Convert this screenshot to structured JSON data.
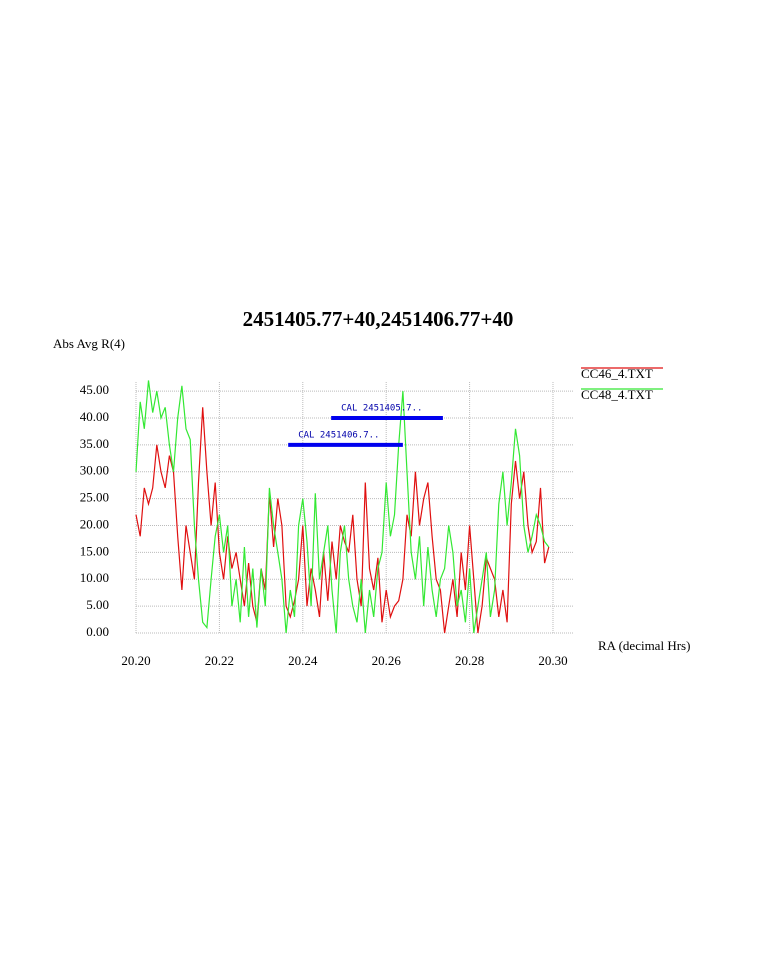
{
  "chart_data": {
    "type": "line",
    "title": "2451405.77+40,2451406.77+40",
    "ylabel": "Abs Avg R(4)",
    "xlabel": "RA (decimal Hrs)",
    "x": [
      20.2,
      20.201,
      20.202,
      20.203,
      20.204,
      20.205,
      20.206,
      20.207,
      20.208,
      20.209,
      20.21,
      20.211,
      20.212,
      20.213,
      20.214,
      20.215,
      20.216,
      20.217,
      20.218,
      20.219,
      20.22,
      20.221,
      20.222,
      20.223,
      20.224,
      20.225,
      20.226,
      20.227,
      20.228,
      20.229,
      20.23,
      20.231,
      20.232,
      20.233,
      20.234,
      20.235,
      20.236,
      20.237,
      20.238,
      20.239,
      20.24,
      20.241,
      20.242,
      20.243,
      20.244,
      20.245,
      20.246,
      20.247,
      20.248,
      20.249,
      20.25,
      20.251,
      20.252,
      20.253,
      20.254,
      20.255,
      20.256,
      20.257,
      20.258,
      20.259,
      20.26,
      20.261,
      20.262,
      20.263,
      20.264,
      20.265,
      20.266,
      20.267,
      20.268,
      20.269,
      20.27,
      20.271,
      20.272,
      20.273,
      20.274,
      20.275,
      20.276,
      20.277,
      20.278,
      20.279,
      20.28,
      20.281,
      20.282,
      20.283,
      20.284,
      20.285,
      20.286,
      20.287,
      20.288,
      20.289,
      20.29,
      20.291,
      20.292,
      20.293,
      20.294,
      20.295,
      20.296,
      20.297,
      20.298,
      20.299
    ],
    "series": [
      {
        "name": "CC46_4.TXT",
        "color": "#e01010",
        "values": [
          22,
          18,
          27,
          24,
          27,
          35,
          30,
          27,
          33,
          30,
          18,
          8,
          20,
          15,
          10,
          28,
          42,
          30,
          20,
          28,
          15,
          10,
          18,
          12,
          15,
          10,
          5,
          13,
          5,
          2,
          12,
          8,
          26,
          16,
          25,
          20,
          5,
          3,
          6,
          10,
          20,
          5,
          12,
          8,
          3,
          15,
          6,
          17,
          10,
          20,
          17,
          15,
          22,
          10,
          5,
          28,
          12,
          8,
          14,
          2,
          8,
          3,
          5,
          6,
          10,
          22,
          18,
          30,
          20,
          25,
          28,
          18,
          10,
          8,
          0,
          5,
          10,
          3,
          15,
          8,
          20,
          10,
          0,
          5,
          14,
          12,
          10,
          3,
          8,
          2,
          24,
          32,
          25,
          30,
          20,
          15,
          17,
          27,
          13,
          16
        ]
      },
      {
        "name": "CC48_4.TXT",
        "color": "#33e833",
        "values": [
          30,
          43,
          38,
          47,
          41,
          45,
          40,
          42,
          35,
          30,
          40,
          46,
          38,
          36,
          20,
          10,
          2,
          1,
          10,
          18,
          22,
          15,
          20,
          5,
          10,
          2,
          16,
          3,
          12,
          1,
          12,
          5,
          27,
          20,
          15,
          10,
          0,
          8,
          3,
          20,
          25,
          17,
          5,
          26,
          10,
          15,
          20,
          8,
          0,
          15,
          20,
          10,
          5,
          2,
          10,
          0,
          8,
          3,
          12,
          15,
          28,
          18,
          22,
          35,
          45,
          30,
          15,
          10,
          18,
          5,
          16,
          8,
          3,
          10,
          12,
          20,
          15,
          5,
          8,
          2,
          12,
          0,
          5,
          10,
          15,
          3,
          8,
          24,
          30,
          20,
          28,
          38,
          33,
          20,
          15,
          18,
          22,
          20,
          17,
          16
        ]
      }
    ],
    "annotations": [
      {
        "text": "CAL 2451405.7..",
        "x": [
          20.2468,
          20.2736
        ],
        "y": 40,
        "color": "#0000ee"
      },
      {
        "text": "CAL 2451406.7..",
        "x": [
          20.2365,
          20.264
        ],
        "y": 35,
        "color": "#0000ee"
      }
    ],
    "xlim": [
      20.2,
      20.3048
    ],
    "ylim": [
      0,
      46.7
    ],
    "xticks": [
      {
        "value": 20.2,
        "label": "20.20"
      },
      20.22,
      20.24,
      20.26,
      20.28,
      {
        "value": 20.3,
        "label": "20.30"
      }
    ],
    "yticks": [
      {
        "value": 0,
        "label": "0.00"
      },
      {
        "value": 5,
        "label": "5.00"
      },
      {
        "value": 10,
        "label": "10.00"
      },
      {
        "value": 15,
        "label": "15.00"
      },
      {
        "value": 20,
        "label": "20.00"
      },
      {
        "value": 25,
        "label": "25.00"
      },
      {
        "value": 30,
        "label": "30.00"
      },
      {
        "value": 35,
        "label": "35.00"
      },
      {
        "value": 40,
        "label": "40.00"
      },
      {
        "value": 45,
        "label": "45.00"
      }
    ],
    "grid": true,
    "legend": "top-right"
  }
}
